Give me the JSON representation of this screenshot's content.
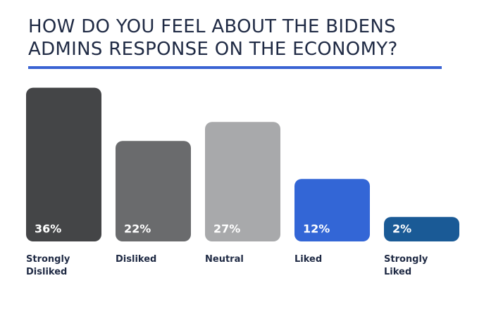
{
  "chart_data": {
    "type": "bar",
    "title": "HOW DO YOU FEEL ABOUT THE BIDENS ADMINS RESPONSE ON THE ECONOMY?",
    "categories": [
      "Strongly Disliked",
      "Disliked",
      "Neutral",
      "Liked",
      "Strongly Liked"
    ],
    "values": [
      36,
      22,
      27,
      12,
      2
    ],
    "value_labels": [
      "36%",
      "22%",
      "27%",
      "12%",
      "2%"
    ],
    "colors": [
      "#444547",
      "#6a6b6d",
      "#a8a9ab",
      "#3366d6",
      "#1a5a96"
    ]
  }
}
